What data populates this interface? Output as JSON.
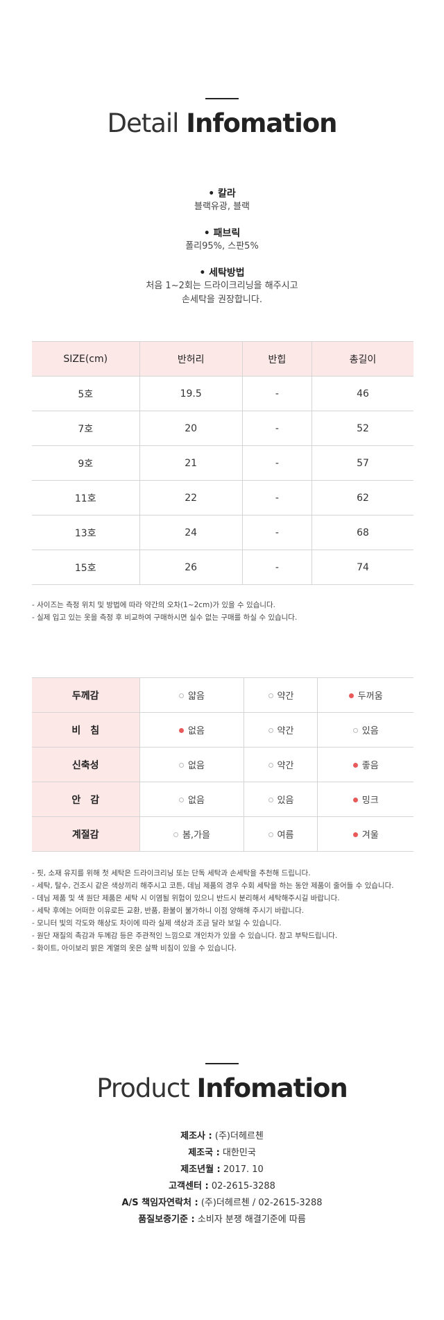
{
  "detail": {
    "title_light": "Detail",
    "title_bold": "Infomation"
  },
  "specs": [
    {
      "title": "• 칼라",
      "lines": [
        "블랙유광, 블랙"
      ]
    },
    {
      "title": "• 패브릭",
      "lines": [
        "폴리95%, 스판5%"
      ]
    },
    {
      "title": "• 세탁방법",
      "lines": [
        "처음 1~2회는 드라이크리닝을 해주시고",
        "손세탁을 권장합니다."
      ]
    }
  ],
  "size_table": {
    "headers": [
      "SIZE(cm)",
      "반허리",
      "반힙",
      "총길이"
    ],
    "rows": [
      [
        "5호",
        "19.5",
        "-",
        "46"
      ],
      [
        "7호",
        "20",
        "-",
        "52"
      ],
      [
        "9호",
        "21",
        "-",
        "57"
      ],
      [
        "11호",
        "22",
        "-",
        "62"
      ],
      [
        "13호",
        "24",
        "-",
        "68"
      ],
      [
        "15호",
        "26",
        "-",
        "74"
      ]
    ]
  },
  "size_notes": [
    "- 사이즈는 측정 위치 및 방법에 따라 약간의 오차(1~2cm)가 있을 수 있습니다.",
    "- 실제 입고 있는 옷을 측정 후 비교하여 구매하시면 실수 없는 구매를 하실 수 있습니다."
  ],
  "feel_table": {
    "accent_color": "#e85a5a",
    "rows": [
      {
        "label": "두께감",
        "options": [
          "얇음",
          "약간",
          "두꺼움"
        ],
        "selected": 2
      },
      {
        "label": "비　침",
        "options": [
          "없음",
          "약간",
          "있음"
        ],
        "selected": 0
      },
      {
        "label": "신축성",
        "options": [
          "없음",
          "약간",
          "좋음"
        ],
        "selected": 2
      },
      {
        "label": "안　감",
        "options": [
          "없음",
          "있음",
          "밍크"
        ],
        "selected": 2
      },
      {
        "label": "계절감",
        "options": [
          "봄,가을",
          "여름",
          "겨울"
        ],
        "selected": 2
      }
    ]
  },
  "care_notes": [
    "- 핏, 소재 유지를 위해 첫 세탁은 드라이크리닝 또는 단독 세탁과 손세탁을 추천해 드립니다.",
    "- 세탁, 탈수, 건조시 같은 색상끼리 해주시고 코튼, 데님 제품의 경우 수회 세탁을 하는 동안 제품이 줄어들 수 있습니다.",
    "- 데님 제품 및 색 원단 제품은 세탁 시 이염될 위험이 있으니 반드시 분리해서 세탁해주시길 바랍니다.",
    "- 세탁 후에는 어떠한 이유로든 교환, 반품, 환불이 불가하니 이점 양해해 주시기 바랍니다.",
    "- 모니터 빛의 각도와 해상도 차이에 따라 실제 색상과 조금 달라 보일 수 있습니다.",
    "- 원단 재질의 촉감과 두께감 등은 주관적인 느낌으로 개인차가 있을 수 있습니다. 참고 부탁드립니다.",
    "- 화이트, 아이보리 밝은 계열의 옷은 살짝 비침이 있을 수 있습니다."
  ],
  "product": {
    "title_light": "Product",
    "title_bold": "Infomation",
    "rows": [
      {
        "label": "제조사 :",
        "value": "(주)더헤르첸"
      },
      {
        "label": "제조국 :",
        "value": "대한민국"
      },
      {
        "label": "제조년월 :",
        "value": "2017. 10"
      },
      {
        "label": "고객센터 :",
        "value": "02-2615-3288"
      },
      {
        "label": "A/S 책임자연락처 :",
        "value": "(주)더헤르첸 / 02-2615-3288"
      },
      {
        "label": "품질보증기준 :",
        "value": "소비자 분쟁 해결기준에 따름"
      }
    ]
  }
}
